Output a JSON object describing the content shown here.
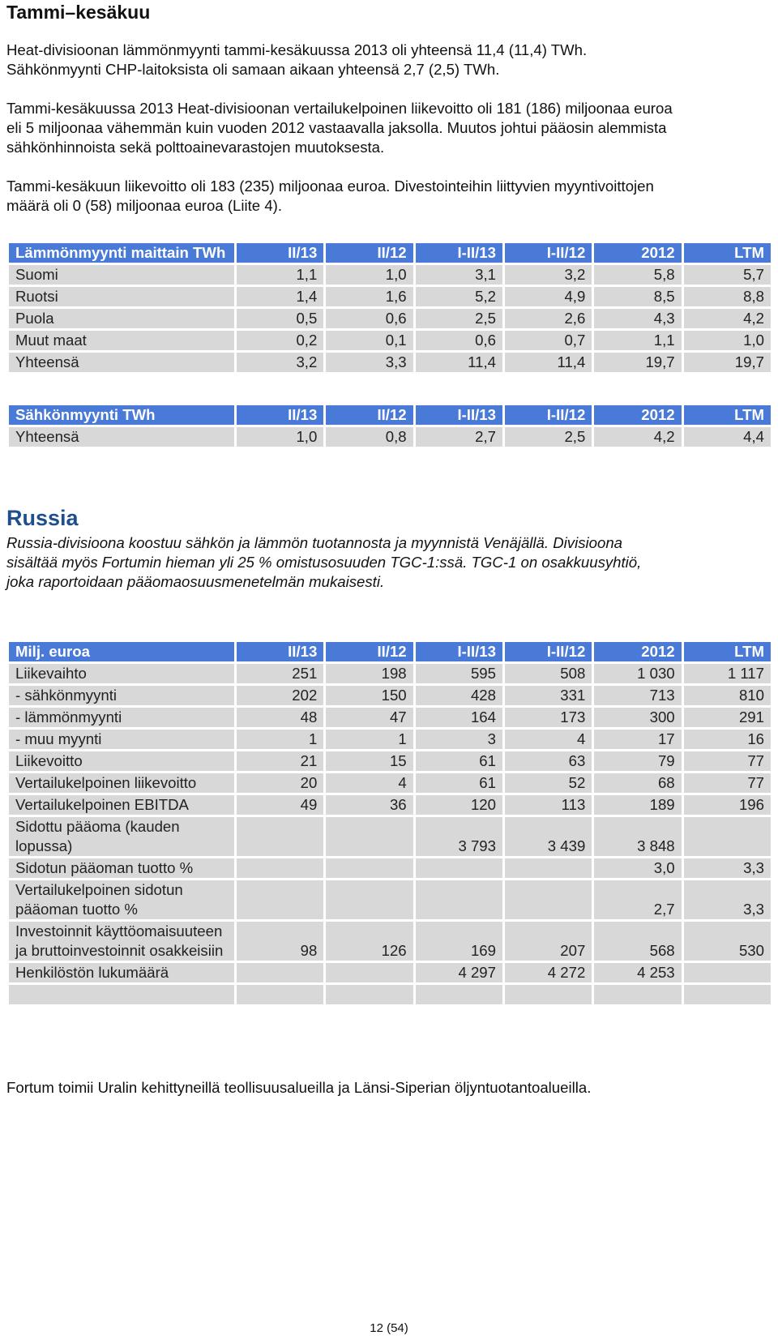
{
  "sections": {
    "heat_title": "Tammi–kesäkuu",
    "russia_title": "Russia"
  },
  "paragraphs": {
    "p1_l1": "Heat-divisioonan lämmönmyynti tammi-kesäkuussa 2013 oli yhteensä 11,4 (11,4) TWh.",
    "p1_l2": "Sähkönmyynti CHP-laitoksista oli samaan aikaan yhteensä 2,7 (2,5) TWh.",
    "p2_l1": "Tammi-kesäkuussa 2013 Heat-divisioonan vertailukelpoinen liikevoitto oli 181 (186) miljoonaa euroa",
    "p2_l2": "eli 5 miljoonaa vähemmän kuin vuoden 2012 vastaavalla jaksolla. Muutos johtui pääosin alemmista",
    "p2_l3": "sähkönhinnoista sekä polttoainevarastojen muutoksesta.",
    "p3_l1": "Tammi-kesäkuun liikevoitto oli 183 (235) miljoonaa euroa. Divestointeihin liittyvien myyntivoittojen",
    "p3_l2": "määrä oli 0 (58) miljoonaa euroa (Liite 4).",
    "russia_l1": "Russia-divisioona koostuu sähkön ja lämmön tuotannosta ja myynnistä Venäjällä. Divisioona",
    "russia_l2": "sisältää myös Fortumin hieman yli 25 % omistusosuuden TGC-1:ssä. TGC-1 on osakkuusyhtiö,",
    "russia_l3": "joka raportoidaan pääomaosuusmenetelmän mukaisesti.",
    "final": "Fortum toimii Uralin kehittyneillä teollisuusalueilla ja Länsi-Siperian öljyntuotantoalueilla."
  },
  "tables": {
    "heat_sales": {
      "header": [
        "Lämmönmyynti maittain TWh",
        "II/13",
        "II/12",
        "I-II/13",
        "I-II/12",
        "2012",
        "LTM"
      ],
      "rows": [
        [
          "Suomi",
          "1,1",
          "1,0",
          "3,1",
          "3,2",
          "5,8",
          "5,7"
        ],
        [
          "Ruotsi",
          "1,4",
          "1,6",
          "5,2",
          "4,9",
          "8,5",
          "8,8"
        ],
        [
          "Puola",
          "0,5",
          "0,6",
          "2,5",
          "2,6",
          "4,3",
          "4,2"
        ],
        [
          "Muut maat",
          "0,2",
          "0,1",
          "0,6",
          "0,7",
          "1,1",
          "1,0"
        ],
        [
          "Yhteensä",
          "3,2",
          "3,3",
          "11,4",
          "11,4",
          "19,7",
          "19,7"
        ]
      ]
    },
    "power_sales": {
      "header": [
        "Sähkönmyynti  TWh",
        "II/13",
        "II/12",
        "I-II/13",
        "I-II/12",
        "2012",
        "LTM"
      ],
      "rows": [
        [
          "Yhteensä",
          "1,0",
          "0,8",
          "2,7",
          "2,5",
          "4,2",
          "4,4"
        ]
      ]
    },
    "russia": {
      "header": [
        "Milj. euroa",
        "II/13",
        "II/12",
        "I-II/13",
        "I-II/12",
        "2012",
        "LTM"
      ],
      "rows": [
        [
          "Liikevaihto",
          "251",
          "198",
          "595",
          "508",
          "1 030",
          "1 117"
        ],
        [
          "- sähkönmyynti",
          "202",
          "150",
          "428",
          "331",
          "713",
          "810"
        ],
        [
          "- lämmönmyynti",
          "48",
          "47",
          "164",
          "173",
          "300",
          "291"
        ],
        [
          "- muu myynti",
          "1",
          "1",
          "3",
          "4",
          "17",
          "16"
        ],
        [
          "Liikevoitto",
          "21",
          "15",
          "61",
          "63",
          "79",
          "77"
        ],
        [
          "Vertailukelpoinen liikevoitto",
          "20",
          "4",
          "61",
          "52",
          "68",
          "77"
        ],
        [
          "Vertailukelpoinen EBITDA",
          "49",
          "36",
          "120",
          "113",
          "189",
          "196"
        ],
        [
          "Sidottu pääoma (kauden lopussa)",
          "",
          "",
          "3 793",
          "3 439",
          "3 848",
          ""
        ],
        [
          "Sidotun pääoman tuotto  %",
          "",
          "",
          "",
          "",
          "3,0",
          "3,3"
        ],
        [
          "Vertailukelpoinen sidotun pääoman tuotto  %",
          "",
          "",
          "",
          "",
          "2,7",
          "3,3"
        ],
        [
          "Investoinnit käyttöomaisuuteen ja bruttoinvestoinnit osakkeisiin",
          "98",
          "126",
          "169",
          "207",
          "568",
          "530"
        ],
        [
          "Henkilöstön lukumäärä",
          "",
          "",
          "4 297",
          "4 272",
          "4 253",
          ""
        ],
        [
          "",
          "",
          "",
          "",
          "",
          "",
          ""
        ]
      ]
    }
  },
  "footer": {
    "page_number": "12 (54)"
  }
}
